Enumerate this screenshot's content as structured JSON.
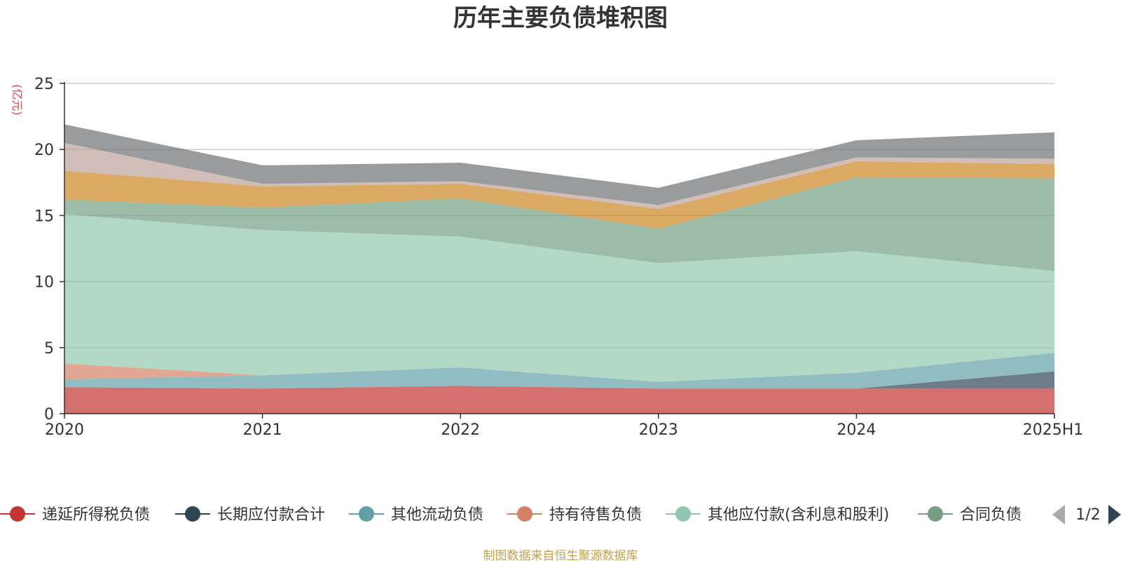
{
  "chart_data": {
    "type": "area",
    "stacked": true,
    "title": "历年主要负债堆积图",
    "unit": "(亿元)",
    "categories": [
      "2020",
      "2021",
      "2022",
      "2023",
      "2024",
      "2025H1"
    ],
    "ylim": [
      0,
      25
    ],
    "yticks": [
      0,
      5,
      10,
      15,
      20,
      25
    ],
    "grid": true,
    "series": [
      {
        "name": "递延所得税负债",
        "color": "#c23531",
        "values": [
          2.0,
          1.9,
          2.1,
          1.9,
          1.9,
          1.9
        ]
      },
      {
        "name": "长期应付款合计",
        "color": "#2f4554",
        "values": [
          0.0,
          0.0,
          0.0,
          0.0,
          0.0,
          1.3
        ]
      },
      {
        "name": "其他流动负债",
        "color": "#61a0a8",
        "values": [
          0.6,
          1.0,
          1.4,
          0.5,
          1.2,
          1.4
        ]
      },
      {
        "name": "持有待售负债",
        "color": "#d48265",
        "values": [
          1.2,
          0.0,
          0.0,
          0.0,
          0.0,
          0.0
        ]
      },
      {
        "name": "其他应付款(含利息和股利)",
        "color": "#91c7ae",
        "values": [
          11.3,
          11.0,
          9.9,
          9.0,
          9.2,
          6.2
        ]
      },
      {
        "name": "合同负债",
        "color": "#749f83",
        "values": [
          1.1,
          1.7,
          2.9,
          2.6,
          5.6,
          7.0
        ]
      },
      {
        "name": "",
        "color": "#ca8622",
        "values": [
          2.2,
          1.6,
          1.1,
          1.5,
          1.2,
          1.1
        ]
      },
      {
        "name": "",
        "color": "#bda29a",
        "values": [
          2.1,
          0.2,
          0.2,
          0.3,
          0.3,
          0.4
        ]
      },
      {
        "name": "",
        "color": "#6e7074",
        "values": [
          1.4,
          1.4,
          1.4,
          1.3,
          1.3,
          2.0
        ]
      }
    ],
    "legend": {
      "position": "bottom",
      "page": "1/2"
    }
  },
  "footer": "制图数据来自恒生聚源数据库"
}
